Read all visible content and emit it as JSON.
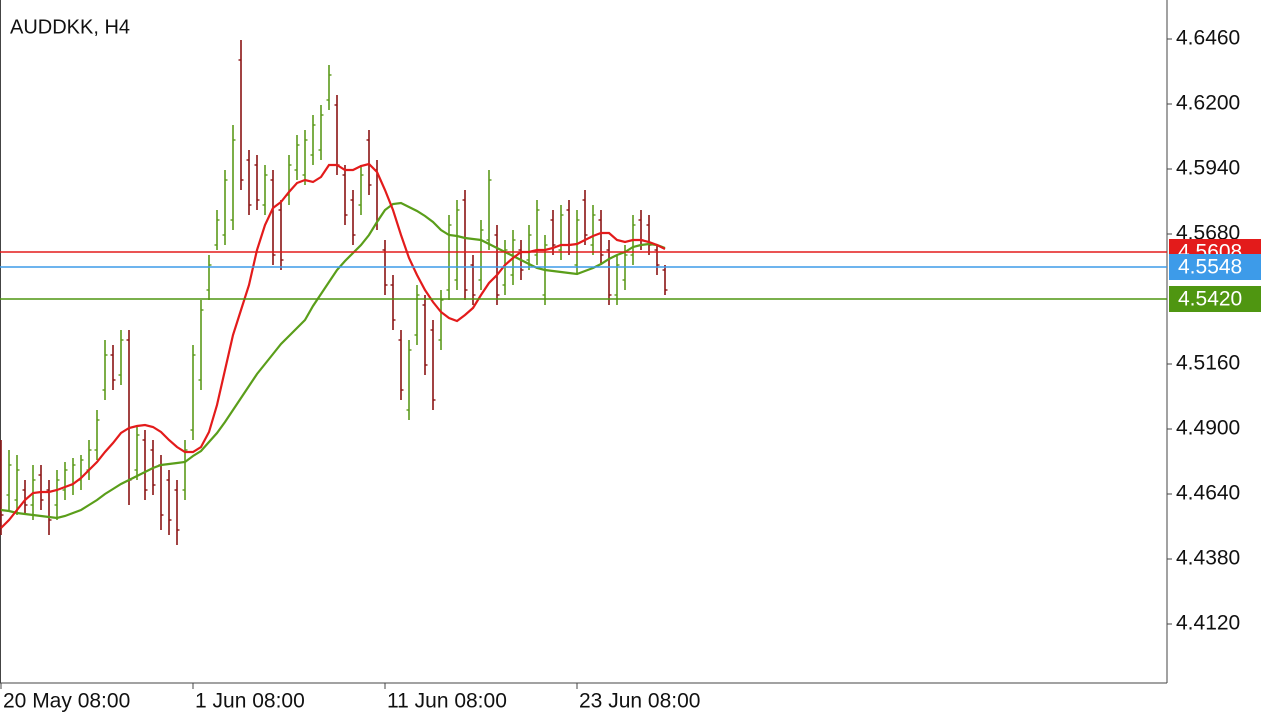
{
  "chart_data": {
    "type": "ohlc",
    "title": "AUDDKK, H4",
    "xlim": [
      -0.125,
      145.75
    ],
    "xticks": [
      {
        "value": 0,
        "label": "20 May 08:00"
      },
      {
        "value": 24,
        "label": "1 Jun 08:00"
      },
      {
        "value": 48,
        "label": "11 Jun 08:00"
      },
      {
        "value": 72,
        "label": "23 Jun 08:00"
      }
    ],
    "ylim": [
      4.3884,
      4.6616
    ],
    "yticks": [
      {
        "value": 4.646,
        "label": "4.6460"
      },
      {
        "value": 4.62,
        "label": "4.6200"
      },
      {
        "value": 4.594,
        "label": "4.5940"
      },
      {
        "value": 4.568,
        "label": "4.5680"
      },
      {
        "value": 4.516,
        "label": "4.5160"
      },
      {
        "value": 4.49,
        "label": "4.4900"
      },
      {
        "value": 4.464,
        "label": "4.4640"
      },
      {
        "value": 4.438,
        "label": "4.4380"
      },
      {
        "value": 4.412,
        "label": "4.4120"
      }
    ],
    "grid": false,
    "up_color": "#5b9a1b",
    "down_color": "#8b1414",
    "open": [
      4.4776,
      4.4636,
      4.4616,
      4.4656,
      4.4596,
      4.4716,
      4.4656,
      4.4596,
      4.4656,
      4.4676,
      4.4696,
      4.4736,
      4.4816,
      4.5056,
      4.5196,
      4.5116,
      4.5256,
      4.4736,
      4.4856,
      4.4816,
      4.4756,
      4.4696,
      4.4656,
      4.4656,
      4.4896,
      4.5096,
      4.5456,
      4.5636,
      4.5676,
      4.5736,
      4.6376,
      4.5976,
      4.5956,
      4.5796,
      4.5896,
      4.5776,
      4.5836,
      4.5936,
      4.5916,
      4.5996,
      4.6016,
      4.6216,
      4.6196,
      4.5916,
      4.5816,
      4.5796,
      4.6056,
      4.5936,
      4.5616,
      4.5476,
      4.5256,
      4.4976,
      4.5276,
      4.5396,
      4.5296,
      4.5256,
      4.5456,
      4.5496,
      4.5816,
      4.5556,
      4.5496,
      4.5656,
      4.5676,
      4.5476,
      4.5516,
      4.5616,
      4.5576,
      4.5596,
      4.5436,
      4.5736,
      4.5616,
      4.5776,
      4.5556,
      4.5816,
      4.5636,
      4.5736,
      4.5616,
      4.5436,
      4.5496,
      4.5596,
      4.5736,
      4.5716,
      4.5616,
      4.5536
    ],
    "high": [
      4.4856,
      4.4816,
      4.4796,
      4.4696,
      4.4756,
      4.4756,
      4.4696,
      4.4736,
      4.4768,
      4.4784,
      4.4796,
      4.4856,
      4.4976,
      4.5256,
      4.5236,
      4.5296,
      4.5296,
      4.4916,
      4.4896,
      4.4856,
      4.4796,
      4.4736,
      4.4696,
      4.4856,
      4.5236,
      4.5416,
      4.5596,
      4.5776,
      4.5936,
      4.6116,
      4.6456,
      4.6016,
      4.5996,
      4.5956,
      4.5936,
      4.5816,
      4.5996,
      4.6076,
      4.6096,
      4.6156,
      4.6196,
      4.6356,
      4.6236,
      4.5956,
      4.5856,
      4.5956,
      4.6096,
      4.5976,
      4.5656,
      4.5516,
      4.5296,
      4.5256,
      4.5476,
      4.5436,
      4.5336,
      4.5456,
      4.5756,
      4.5816,
      4.5856,
      4.5596,
      4.5736,
      4.5936,
      4.5716,
      4.5656,
      4.5696,
      4.5656,
      4.5716,
      4.5816,
      4.5676,
      4.5776,
      4.5796,
      4.5816,
      4.5776,
      4.5856,
      4.5796,
      4.5776,
      4.5656,
      4.5596,
      4.5636,
      4.5756,
      4.5776,
      4.5756,
      4.5636,
      4.5556
    ],
    "low": [
      4.4476,
      4.4576,
      4.4556,
      4.4556,
      4.4536,
      4.4576,
      4.4476,
      4.4536,
      4.4616,
      4.4636,
      4.4656,
      4.4696,
      4.4776,
      4.5016,
      4.5056,
      4.5076,
      4.4596,
      4.4696,
      4.4616,
      4.4636,
      4.4496,
      4.4476,
      4.4436,
      4.4616,
      4.4856,
      4.5056,
      4.5416,
      4.5616,
      4.5636,
      4.5696,
      4.5856,
      4.5756,
      4.5776,
      4.5756,
      4.5556,
      4.5536,
      4.5796,
      4.5896,
      4.5876,
      4.5956,
      4.5976,
      4.6176,
      4.5916,
      4.5716,
      4.5636,
      4.5756,
      4.5836,
      4.5696,
      4.5436,
      4.5296,
      4.5016,
      4.4936,
      4.5236,
      4.5116,
      4.4976,
      4.5216,
      4.5416,
      4.5456,
      4.5416,
      4.5396,
      4.5456,
      4.5616,
      4.5396,
      4.5436,
      4.5476,
      4.5496,
      4.5536,
      4.5556,
      4.5396,
      4.5596,
      4.5576,
      4.5596,
      4.5516,
      4.5636,
      4.5596,
      4.5556,
      4.5396,
      4.5396,
      4.5456,
      4.5556,
      4.5616,
      4.5596,
      4.5516,
      4.5436
    ],
    "close": [
      4.4556,
      4.4756,
      4.4736,
      4.4596,
      4.4696,
      4.4616,
      4.4536,
      4.4696,
      4.4736,
      4.4756,
      4.4776,
      4.4816,
      4.4936,
      4.5196,
      4.5096,
      4.5256,
      4.4696,
      4.4876,
      4.4656,
      4.4676,
      4.4556,
      4.4536,
      4.4496,
      4.4816,
      4.5196,
      4.5376,
      4.5556,
      4.5736,
      4.5896,
      4.6056,
      4.5896,
      4.5796,
      4.5816,
      4.5916,
      4.5596,
      4.5576,
      4.5956,
      4.6036,
      4.6056,
      4.6116,
      4.6156,
      4.6316,
      4.5956,
      4.5756,
      4.5676,
      4.5916,
      4.5876,
      4.5736,
      4.5476,
      4.5336,
      4.5056,
      4.5216,
      4.5436,
      4.5156,
      4.5016,
      4.5416,
      4.5716,
      4.5776,
      4.5456,
      4.5436,
      4.5696,
      4.5896,
      4.5436,
      4.5616,
      4.5656,
      4.5536,
      4.5676,
      4.5776,
      4.5636,
      4.5636,
      4.5756,
      4.5636,
      4.5736,
      4.5676,
      4.5756,
      4.5596,
      4.5436,
      4.5556,
      4.5596,
      4.5716,
      4.5656,
      4.5636,
      4.5556,
      4.5456
    ],
    "lines": [
      {
        "color": "#5a9e1a",
        "values": [
          4.4576,
          4.4572,
          4.4564,
          4.456,
          4.4556,
          4.4552,
          4.4548,
          4.4544,
          4.4552,
          4.4564,
          4.4576,
          4.4596,
          4.4616,
          4.464,
          4.466,
          4.468,
          4.4696,
          4.4712,
          4.4728,
          4.4744,
          4.4756,
          4.476,
          4.4764,
          4.4768,
          4.4792,
          4.4812,
          4.4848,
          4.4884,
          4.4928,
          4.4976,
          4.5024,
          4.5072,
          4.512,
          4.516,
          4.52,
          4.524,
          4.5272,
          4.5304,
          4.5336,
          4.5392,
          4.544,
          4.5488,
          4.5536,
          4.5572,
          4.5604,
          4.5636,
          4.5676,
          4.5728,
          4.5776,
          4.58,
          4.5804,
          4.5788,
          4.5772,
          4.5752,
          4.5728,
          4.5696,
          4.5676,
          4.5672,
          4.5664,
          4.566,
          4.5656,
          4.564,
          4.5624,
          4.5608,
          4.5592,
          4.5576,
          4.556,
          4.5544,
          4.5536,
          4.5532,
          4.5528,
          4.5524,
          4.552,
          4.5532,
          4.5544,
          4.556,
          4.558,
          4.5596,
          4.5608,
          4.5628,
          4.5636,
          4.564,
          4.5636,
          4.5624
        ]
      },
      {
        "color": "#e31b1b",
        "values": [
          4.4504,
          4.4536,
          4.4576,
          4.4616,
          4.4644,
          4.4648,
          4.4648,
          4.4656,
          4.4668,
          4.468,
          4.4704,
          4.4736,
          4.4768,
          4.4808,
          4.4844,
          4.4884,
          4.4904,
          4.4912,
          4.4916,
          4.4908,
          4.4888,
          4.4856,
          4.4828,
          4.4808,
          4.4808,
          4.4828,
          4.4888,
          4.4996,
          4.5136,
          4.5276,
          4.5376,
          4.5476,
          4.5616,
          4.5716,
          4.5784,
          4.5808,
          4.5848,
          4.5884,
          4.5896,
          4.5888,
          4.5908,
          4.5956,
          4.5956,
          4.5936,
          4.5936,
          4.5952,
          4.596,
          4.5928,
          4.5856,
          4.5776,
          4.5676,
          4.5584,
          4.5516,
          4.5456,
          4.5408,
          4.5368,
          4.5344,
          4.5332,
          4.5356,
          4.5384,
          4.5436,
          4.5484,
          4.5516,
          4.5556,
          4.5584,
          4.5608,
          4.5608,
          4.5616,
          4.5616,
          4.5624,
          4.5636,
          4.5636,
          4.564,
          4.5656,
          4.5672,
          4.5684,
          4.5684,
          4.5656,
          4.5648,
          4.5656,
          4.5656,
          4.5648,
          4.5636,
          4.562
        ]
      }
    ],
    "hlines": [
      {
        "value": 4.5608,
        "label": "4.5608",
        "color": "#e31b1b"
      },
      {
        "value": 4.5548,
        "label": "4.5548",
        "color": "#3d9be9"
      },
      {
        "value": 4.542,
        "label": "4.5420",
        "color": "#4f9611"
      }
    ]
  }
}
